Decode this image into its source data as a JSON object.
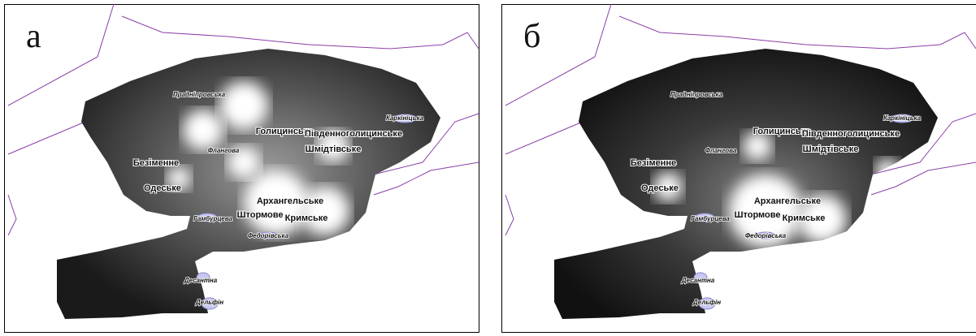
{
  "panels": [
    {
      "label": "а",
      "places": [
        "Прадніпровська",
        "Каркініцька",
        "Голицинське",
        "Південноголицинське",
        "Шмідтівське",
        "Флангова",
        "Безіменне",
        "Одеське",
        "Архангельське",
        "Гамбурцева",
        "Штормове",
        "Кримське",
        "Федорівська",
        "Десантна",
        "Дельфін"
      ]
    },
    {
      "label": "б",
      "places": [
        "Прадніпровська",
        "Каркініцька",
        "Голицинське",
        "Південноголицинське",
        "Шмідтівське",
        "Флангова",
        "Безіменне",
        "Одеське",
        "Архангельське",
        "Гамбурцева",
        "Штормове",
        "Кримське",
        "Федорівська",
        "Десантна",
        "Дельфін"
      ]
    }
  ]
}
